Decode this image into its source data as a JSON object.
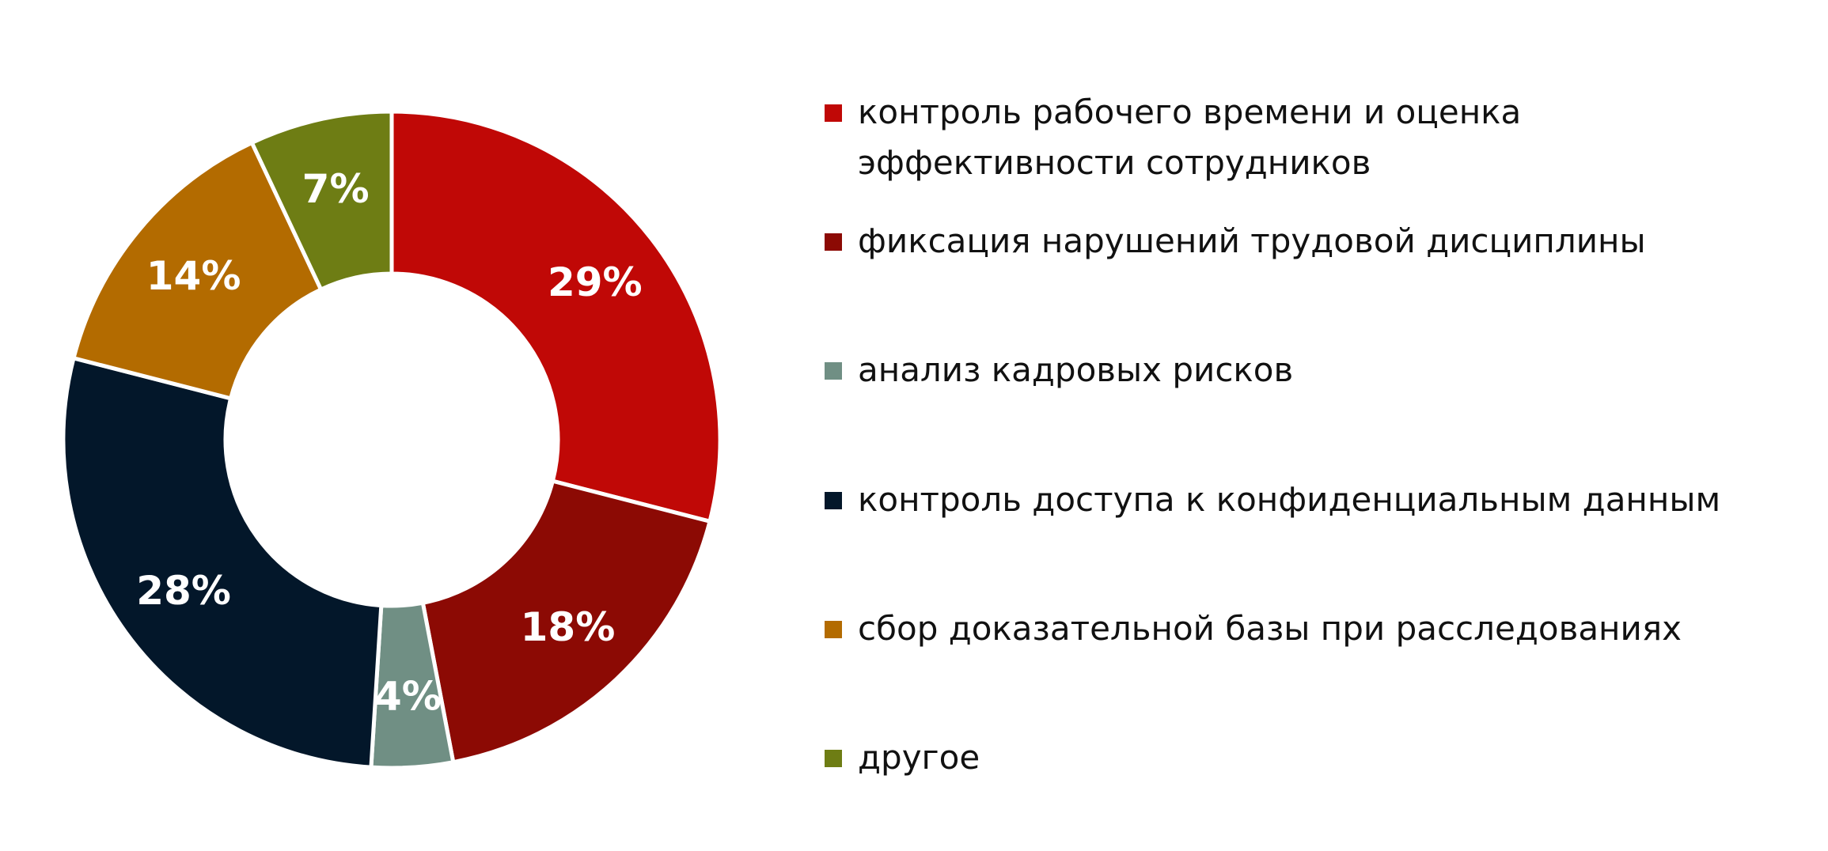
{
  "chart_data": {
    "type": "pie",
    "variant": "donut",
    "legend_position": "right",
    "labels": [
      "контроль рабочего времени и оценка эффективности сотрудников",
      "фиксация нарушений трудовой дисциплины",
      "анализ кадровых рисков",
      "контроль доступа к конфиденциальным данным",
      "сбор доказательной базы при расследованиях",
      "другое"
    ],
    "values": [
      29,
      18,
      4,
      28,
      14,
      7
    ],
    "value_labels": [
      "29%",
      "18%",
      "4%",
      "28%",
      "14%",
      "7%"
    ],
    "colors": [
      "#c00806",
      "#8c0a04",
      "#708f84",
      "#03172a",
      "#b36b00",
      "#6e7d14"
    ]
  }
}
